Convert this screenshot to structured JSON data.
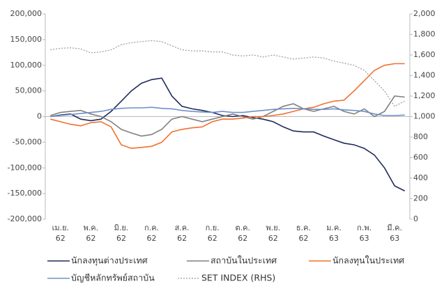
{
  "chart_data": {
    "type": "line",
    "categories": [
      null,
      "เม.ย. 62",
      null,
      null,
      "พ.ค. 62",
      null,
      null,
      "มิ.ย. 62",
      null,
      null,
      "ก.ค. 62",
      null,
      null,
      "ส.ค. 62",
      null,
      null,
      "ก.ย. 62",
      null,
      null,
      "ต.ค. 62",
      null,
      null,
      "พ.ย. 62",
      null,
      null,
      "ธ.ค. 62",
      null,
      null,
      "ม.ค. 63",
      null,
      null,
      "ก.พ. 63",
      null,
      null,
      "มี.ค. 63",
      null
    ],
    "series": [
      {
        "name": "นักลงทุนต่างประเทศ",
        "color": "#1f2a5a",
        "values": [
          0,
          3000,
          5000,
          -5000,
          -8000,
          -5000,
          10000,
          30000,
          50000,
          65000,
          72000,
          75000,
          40000,
          20000,
          15000,
          12000,
          8000,
          2000,
          0,
          2000,
          -2000,
          -5000,
          -10000,
          -20000,
          -28000,
          -30000,
          -30000,
          -38000,
          -45000,
          -52000,
          -55000,
          -62000,
          -75000,
          -100000,
          -135000,
          -145000
        ]
      },
      {
        "name": "สถาบันในประเทศ",
        "color": "#808080",
        "values": [
          2000,
          8000,
          10000,
          12000,
          5000,
          0,
          -10000,
          -25000,
          -32000,
          -38000,
          -35000,
          -25000,
          -5000,
          0,
          -5000,
          -10000,
          -5000,
          0,
          5000,
          0,
          -5000,
          0,
          10000,
          20000,
          25000,
          15000,
          10000,
          15000,
          20000,
          10000,
          5000,
          15000,
          0,
          10000,
          40000,
          38000
        ]
      },
      {
        "name": "นักลงทุนในประเทศ",
        "color": "#f07030",
        "values": [
          -5000,
          -10000,
          -15000,
          -18000,
          -12000,
          -10000,
          -20000,
          -55000,
          -62000,
          -60000,
          -58000,
          -50000,
          -30000,
          -25000,
          -22000,
          -20000,
          -10000,
          -5000,
          -5000,
          -3000,
          0,
          0,
          2000,
          5000,
          10000,
          15000,
          18000,
          25000,
          30000,
          32000,
          50000,
          70000,
          90000,
          100000,
          103000,
          103000
        ]
      },
      {
        "name": "บัญชีหลักทรัพย์สถาบัน",
        "color": "#7090c8",
        "values": [
          0,
          2000,
          4000,
          6000,
          8000,
          10000,
          14000,
          16000,
          17000,
          17000,
          18000,
          16000,
          15000,
          12000,
          10000,
          9000,
          8000,
          10000,
          8000,
          8000,
          10000,
          12000,
          14000,
          15000,
          16000,
          15000,
          14000,
          14000,
          15000,
          13000,
          12000,
          10000,
          5000,
          2000,
          2000,
          3000
        ]
      },
      {
        "name": "SET INDEX (RHS)",
        "color": "#999999",
        "axis": "y2",
        "dashed": true,
        "values": [
          1650,
          1665,
          1670,
          1660,
          1620,
          1630,
          1650,
          1700,
          1720,
          1730,
          1740,
          1730,
          1690,
          1650,
          1640,
          1640,
          1630,
          1630,
          1600,
          1590,
          1600,
          1580,
          1600,
          1580,
          1560,
          1570,
          1580,
          1570,
          1540,
          1520,
          1500,
          1450,
          1350,
          1250,
          1100,
          1150
        ]
      }
    ],
    "ylim": [
      -200000,
      200000
    ],
    "yticks": [
      {
        "value": -200000,
        "label": "-200,000"
      },
      {
        "value": -150000,
        "label": "-150,000"
      },
      {
        "value": -100000,
        "label": "-100,000"
      },
      {
        "value": -50000,
        "label": "-50,000"
      },
      0,
      {
        "value": 50000,
        "label": "50,000"
      },
      {
        "value": 100000,
        "label": "100,000"
      },
      {
        "value": 150000,
        "label": "150,000"
      },
      {
        "value": 200000,
        "label": "200,000"
      }
    ],
    "y2lim": [
      0,
      2000
    ],
    "y2ticks": [
      0,
      200,
      400,
      600,
      800,
      {
        "value": 1000,
        "label": "1,000"
      },
      {
        "value": 1200,
        "label": "1,200"
      },
      {
        "value": 1400,
        "label": "1,400"
      },
      {
        "value": 1600,
        "label": "1,600"
      },
      {
        "value": 1800,
        "label": "1,800"
      },
      {
        "value": 2000,
        "label": "2,000"
      }
    ],
    "grid": false
  }
}
